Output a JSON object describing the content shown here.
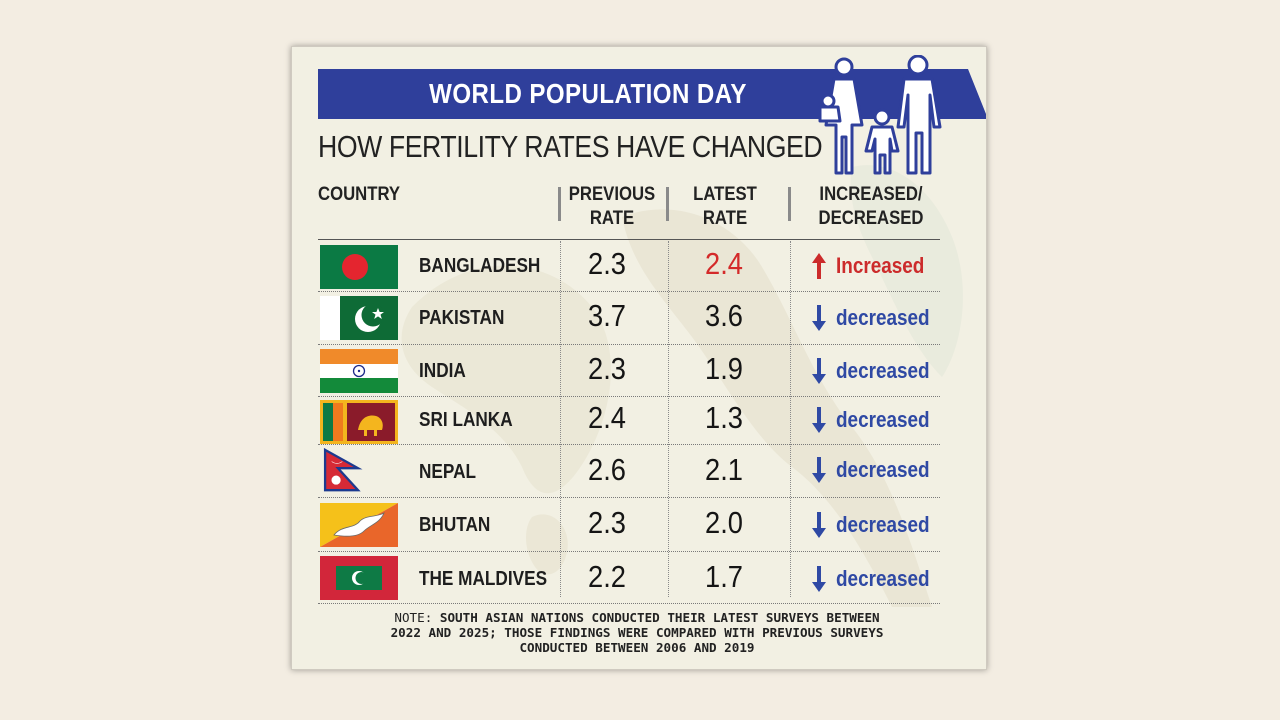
{
  "banner": {
    "title": "WORLD POPULATION DAY"
  },
  "subtitle": "HOW FERTILITY RATES HAVE CHANGED",
  "headers": {
    "country": "COUNTRY",
    "previous_line1": "PREVIOUS",
    "previous_line2": "RATE",
    "latest_line1": "LATEST",
    "latest_line2": "RATE",
    "change_line1": "INCREASED/",
    "change_line2": "DECREASED"
  },
  "rows": [
    {
      "country": "BANGLADESH",
      "previous": "2.3",
      "latest": "2.4",
      "change": "Increased",
      "direction": "up",
      "flag": "bangladesh-flag"
    },
    {
      "country": "PAKISTAN",
      "previous": "3.7",
      "latest": "3.6",
      "change": "decreased",
      "direction": "down",
      "flag": "pakistan-flag"
    },
    {
      "country": "INDIA",
      "previous": "2.3",
      "latest": "1.9",
      "change": "decreased",
      "direction": "down",
      "flag": "india-flag"
    },
    {
      "country": "SRI LANKA",
      "previous": "2.4",
      "latest": "1.3",
      "change": "decreased",
      "direction": "down",
      "flag": "sri-lanka-flag"
    },
    {
      "country": "NEPAL",
      "previous": "2.6",
      "latest": "2.1",
      "change": "decreased",
      "direction": "down",
      "flag": "nepal-flag"
    },
    {
      "country": "BHUTAN",
      "previous": "2.3",
      "latest": "2.0",
      "change": "decreased",
      "direction": "down",
      "flag": "bhutan-flag"
    },
    {
      "country": "THE MALDIVES",
      "previous": "2.2",
      "latest": "1.7",
      "change": "decreased",
      "direction": "down",
      "flag": "maldives-flag"
    }
  ],
  "note": {
    "label": "NOTE:",
    "line1": "SOUTH ASIAN NATIONS CONDUCTED THEIR LATEST SURVEYS BETWEEN",
    "line2": "2022 AND 2025; THOSE FINDINGS WERE COMPARED WITH PREVIOUS SURVEYS",
    "line3": "CONDUCTED BETWEEN 2006 AND 2019"
  },
  "colors": {
    "banner_blue": "#2f3f9b",
    "banner_red": "#d6303a",
    "increased_red": "#cc2b2b",
    "decreased_blue": "#2f49a4"
  },
  "icons": {
    "family": "family-illustration-icon",
    "up_arrow": "arrow-up-icon",
    "down_arrow": "arrow-down-icon"
  }
}
